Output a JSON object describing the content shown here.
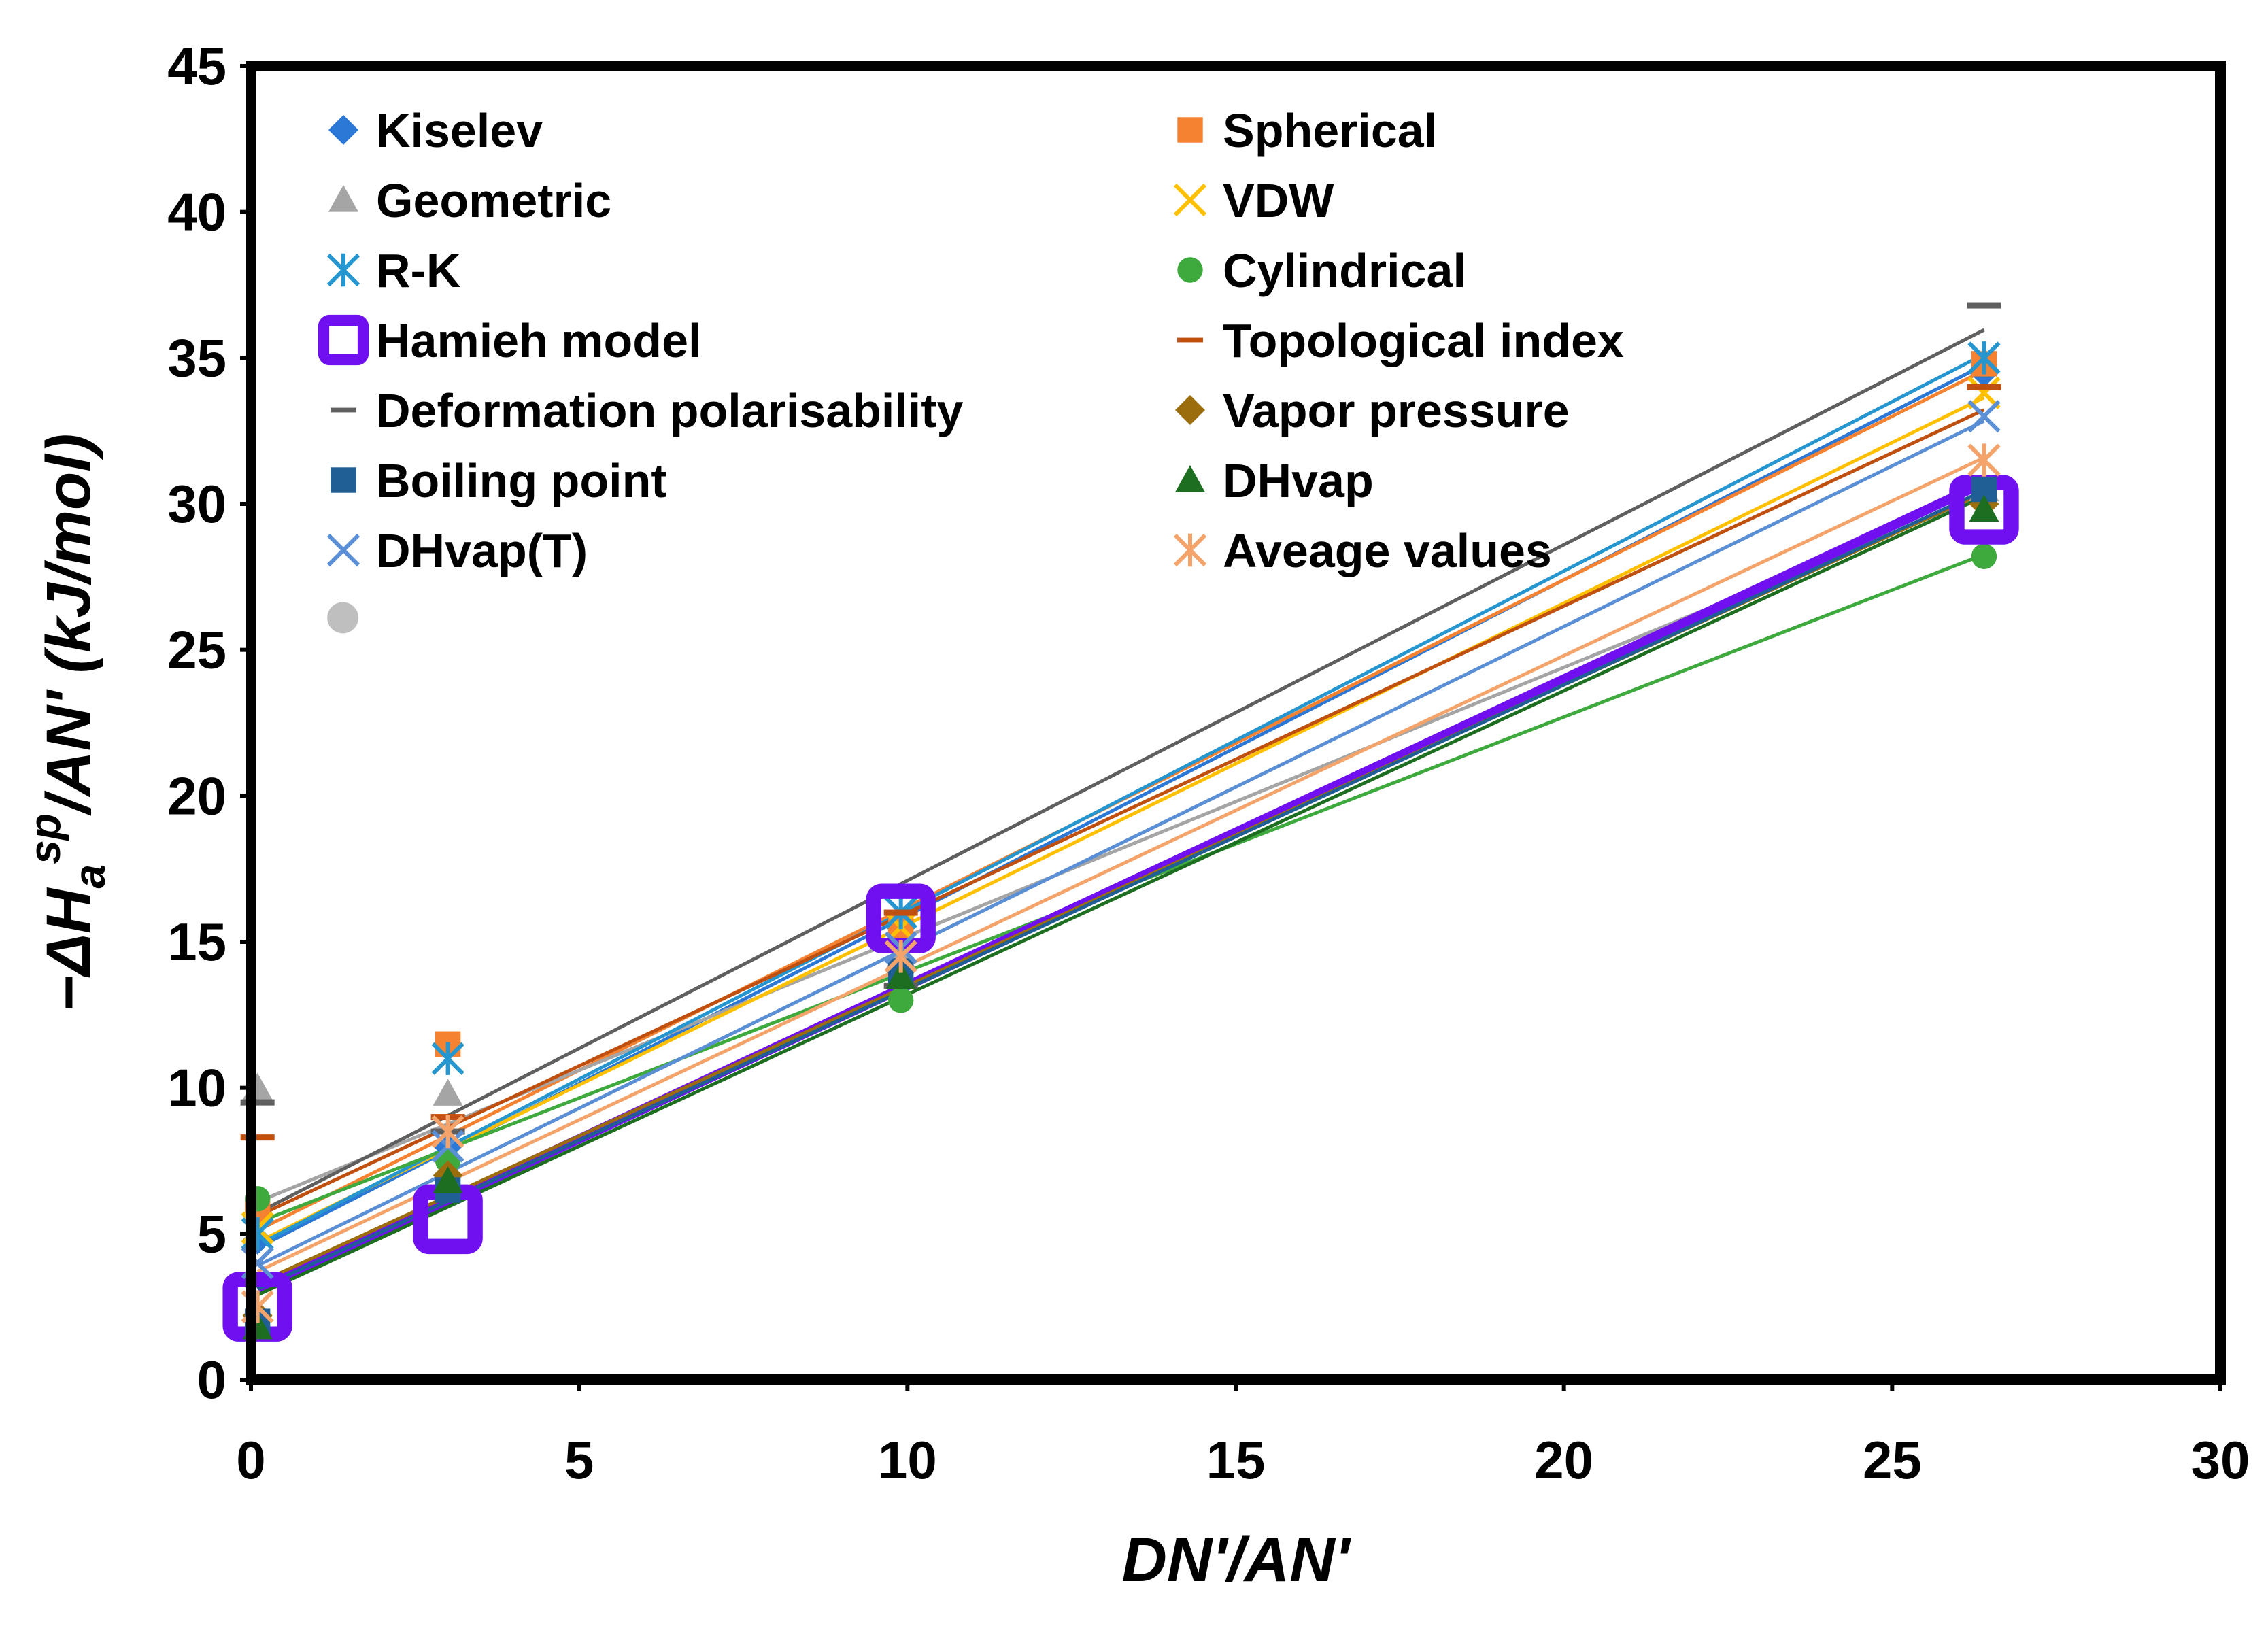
{
  "chart_data": {
    "type": "scatter",
    "xlabel": "DN'/AN'",
    "ylabel_parts": {
      "prefix": "−ΔH",
      "sub": "a",
      "sup": "sp",
      "suffix": "/AN' (kJ/mol)"
    },
    "xlim": [
      0,
      30
    ],
    "ylim": [
      0,
      45
    ],
    "xticks": [
      0,
      5,
      10,
      15,
      20,
      25,
      30
    ],
    "yticks": [
      0,
      5,
      10,
      15,
      20,
      25,
      30,
      35,
      40,
      45
    ],
    "grid": false,
    "legend_position": "top-left",
    "x": [
      0.1,
      3.0,
      9.9,
      26.4
    ],
    "series": [
      {
        "name": "Kiselev",
        "marker": "diamond",
        "color": "#2B78D6",
        "values": [
          4.8,
          8.0,
          15.5,
          34.5
        ],
        "fit": [
          4.4,
          1.15
        ]
      },
      {
        "name": "Spherical",
        "marker": "square",
        "color": "#F58231",
        "values": [
          5.8,
          11.5,
          15.5,
          34.8
        ],
        "fit": [
          5.0,
          1.12
        ]
      },
      {
        "name": "Geometric",
        "marker": "triangle",
        "color": "#A5A5A5",
        "values": [
          10.0,
          9.8,
          14.5,
          30.5
        ],
        "fit": [
          6.0,
          0.92
        ]
      },
      {
        "name": "VDW",
        "marker": "x",
        "color": "#FFC000",
        "values": [
          5.2,
          11.0,
          15.5,
          33.8
        ],
        "fit": [
          4.6,
          1.1
        ]
      },
      {
        "name": "R-K",
        "marker": "asterisk",
        "color": "#2596CF",
        "values": [
          5.0,
          11.0,
          16.0,
          35.0
        ],
        "fit": [
          4.5,
          1.16
        ]
      },
      {
        "name": "Cylindrical",
        "marker": "circle",
        "color": "#3EAA3E",
        "values": [
          6.2,
          7.5,
          13.0,
          28.2
        ],
        "fit": [
          5.3,
          0.87
        ]
      },
      {
        "name": "Hamieh model",
        "marker": "hollow-square",
        "color": "#7010F0",
        "values": [
          2.5,
          5.5,
          15.8,
          29.8
        ],
        "fit": [
          3.0,
          1.05
        ]
      },
      {
        "name": "Topological index",
        "marker": "dash",
        "color": "#C0500F",
        "values": [
          8.3,
          9.0,
          16.0,
          34.0
        ],
        "fit": [
          5.5,
          1.05
        ]
      },
      {
        "name": "Deformation polarisability",
        "marker": "dash",
        "color": "#5F5F5F",
        "values": [
          9.5,
          8.5,
          13.5,
          36.8
        ],
        "fit": [
          5.6,
          1.15
        ]
      },
      {
        "name": "Vapor pressure",
        "marker": "diamond",
        "color": "#9C6D0D",
        "values": [
          2.2,
          7.0,
          14.0,
          30.0
        ],
        "fit": [
          3.2,
          1.03
        ]
      },
      {
        "name": "Boiling point",
        "marker": "square",
        "color": "#1F5F95",
        "values": [
          2.0,
          6.5,
          14.0,
          30.5
        ],
        "fit": [
          3.0,
          1.04
        ]
      },
      {
        "name": "DHvap",
        "marker": "triangle",
        "color": "#1E6E22",
        "values": [
          1.8,
          6.8,
          13.8,
          29.8
        ],
        "fit": [
          2.8,
          1.04
        ]
      },
      {
        "name": "DHvap(T)",
        "marker": "x",
        "color": "#5A8FD6",
        "values": [
          4.0,
          8.0,
          14.8,
          33.0
        ],
        "fit": [
          3.8,
          1.1
        ]
      },
      {
        "name": "Aveage values",
        "marker": "asterisk",
        "color": "#F4A46A",
        "values": [
          2.5,
          8.5,
          14.5,
          31.5
        ],
        "fit": [
          3.6,
          1.06
        ]
      }
    ],
    "extra_points": [
      {
        "marker": "circle",
        "color": "#BFBFBF",
        "x": 1.4,
        "y": 26.1
      }
    ]
  }
}
